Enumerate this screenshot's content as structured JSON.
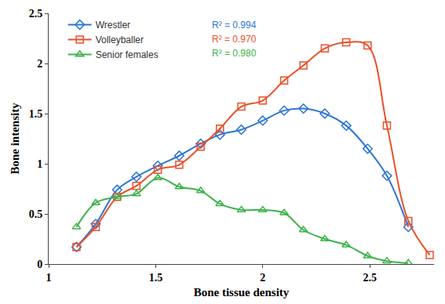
{
  "chart_data": {
    "type": "line",
    "x_label": "Bone tissue density",
    "y_label": "Bone intensity",
    "x": [
      1.13,
      1.22,
      1.32,
      1.41,
      1.51,
      1.61,
      1.71,
      1.8,
      1.9,
      2.0,
      2.1,
      2.19,
      2.29,
      2.39,
      2.49,
      2.58,
      2.68,
      2.78
    ],
    "series": [
      {
        "name": "Wrestler",
        "color": "#2e75d6",
        "marker": "diamond-open",
        "line_style": "spline",
        "r2_label": "R² = 0.994",
        "values": [
          0.17,
          0.4,
          0.74,
          0.87,
          0.98,
          1.08,
          1.2,
          1.29,
          1.34,
          1.43,
          1.53,
          1.55,
          1.5,
          1.38,
          1.15,
          0.88,
          0.37,
          null
        ]
      },
      {
        "name": "Volleyballer",
        "color": "#e8512a",
        "marker": "square-open",
        "line_style": "spline",
        "r2_label": "R² = 0.970",
        "values": [
          0.17,
          0.37,
          0.67,
          0.78,
          0.94,
          0.99,
          1.17,
          1.35,
          1.57,
          1.63,
          1.83,
          1.98,
          2.15,
          2.21,
          2.18,
          1.38,
          0.43,
          0.09
        ]
      },
      {
        "name": "Senior females",
        "color": "#3cb34a",
        "marker": "triangle-up-open",
        "line_style": "spline",
        "r2_label": "R² = 0.980",
        "values": [
          0.37,
          0.61,
          0.67,
          0.7,
          0.86,
          0.77,
          0.73,
          0.6,
          0.54,
          0.54,
          0.51,
          0.34,
          0.25,
          0.19,
          0.08,
          0.03,
          0.01,
          null
        ]
      }
    ],
    "xlim": [
      1,
      2.8
    ],
    "xticks": [
      1,
      1.5,
      2,
      2.5
    ],
    "ylim": [
      0,
      2.5
    ],
    "yticks": [
      0,
      0.5,
      1,
      1.5,
      2,
      2.5
    ],
    "grid": false,
    "legend": "top-left"
  }
}
